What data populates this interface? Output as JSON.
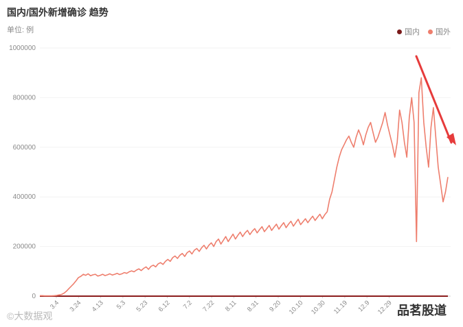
{
  "chart_data": {
    "type": "line",
    "title": "国内/国外新增确诊 趋势",
    "ylabel": "单位: 例",
    "ylim": [
      0,
      1000000
    ],
    "y_ticks": [
      0,
      200000,
      400000,
      600000,
      800000,
      1000000
    ],
    "x_tick_labels": [
      "3.4",
      "3.24",
      "4.13",
      "5.3",
      "5.23",
      "6.12",
      "7.2",
      "7.22",
      "8.11",
      "8.31",
      "9.20",
      "10.10",
      "10.30",
      "11.19",
      "12.9",
      "12.29"
    ],
    "legend": [
      {
        "name": "国内",
        "color": "#7a1a1a"
      },
      {
        "name": "国外",
        "color": "#ee7e6d"
      }
    ],
    "legend_position": "top-right",
    "series": [
      {
        "name": "国内",
        "color": "#8b1c1c",
        "values": [
          0,
          0,
          0,
          0,
          0,
          0,
          0,
          0,
          0,
          0,
          0,
          0,
          0,
          0,
          0,
          0,
          0,
          0,
          0,
          0,
          0,
          0,
          0,
          0,
          0,
          0,
          0,
          0,
          0,
          0,
          0,
          0,
          0,
          0,
          0,
          0,
          0,
          0,
          0,
          0
        ]
      },
      {
        "name": "国外",
        "color": "#ee7e6d",
        "values": [
          2000,
          2000,
          1000,
          1000,
          1000,
          1000,
          2000,
          3000,
          5000,
          7000,
          12000,
          20000,
          30000,
          40000,
          50000,
          62000,
          75000,
          80000,
          88000,
          84000,
          90000,
          82000,
          86000,
          88000,
          81000,
          84000,
          88000,
          83000,
          86000,
          90000,
          85000,
          88000,
          92000,
          87000,
          90000,
          95000,
          92000,
          98000,
          102000,
          98000,
          105000,
          110000,
          103000,
          112000,
          118000,
          108000,
          120000,
          125000,
          118000,
          130000,
          135000,
          128000,
          140000,
          148000,
          140000,
          155000,
          162000,
          152000,
          165000,
          172000,
          160000,
          175000,
          182000,
          170000,
          185000,
          192000,
          180000,
          195000,
          205000,
          190000,
          205000,
          215000,
          200000,
          220000,
          230000,
          210000,
          225000,
          240000,
          220000,
          235000,
          250000,
          230000,
          245000,
          258000,
          240000,
          255000,
          265000,
          248000,
          262000,
          272000,
          255000,
          268000,
          280000,
          260000,
          272000,
          285000,
          265000,
          278000,
          290000,
          270000,
          284000,
          296000,
          276000,
          290000,
          302000,
          282000,
          296000,
          310000,
          288000,
          300000,
          312000,
          296000,
          310000,
          322000,
          305000,
          318000,
          330000,
          312000,
          328000,
          340000,
          390000,
          420000,
          470000,
          520000,
          560000,
          590000,
          610000,
          630000,
          645000,
          620000,
          600000,
          640000,
          670000,
          645000,
          610000,
          650000,
          680000,
          700000,
          660000,
          620000,
          640000,
          670000,
          700000,
          740000,
          690000,
          650000,
          610000,
          560000,
          620000,
          750000,
          700000,
          620000,
          560000,
          720000,
          800000,
          700000,
          220000,
          820000,
          880000,
          700000,
          600000,
          520000,
          680000,
          760000,
          640000,
          520000,
          450000,
          380000,
          420000,
          480000
        ]
      }
    ]
  },
  "watermarks": {
    "left": "©大数据观",
    "right": "品茗股道"
  },
  "annotation": {
    "type": "arrow",
    "color": "#e63b3b"
  }
}
